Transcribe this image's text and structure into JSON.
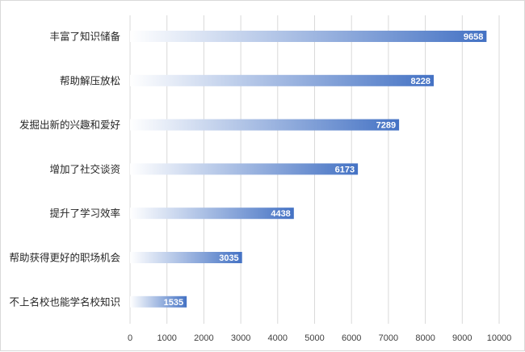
{
  "chart_data": {
    "type": "bar",
    "orientation": "horizontal",
    "categories": [
      "丰富了知识储备",
      "帮助解压放松",
      "发掘出新的兴趣和爱好",
      "增加了社交谈资",
      "提升了学习效率",
      "帮助获得更好的职场机会",
      "不上名校也能学名校知识"
    ],
    "values": [
      9658,
      8228,
      7289,
      6173,
      4438,
      3035,
      1535
    ],
    "xlim": [
      0,
      10000
    ],
    "x_ticks": [
      0,
      1000,
      2000,
      3000,
      4000,
      5000,
      6000,
      7000,
      8000,
      9000,
      10000
    ],
    "x_tick_labels": [
      "0",
      "1000",
      "2000",
      "3000",
      "4000",
      "5000",
      "6000",
      "7000",
      "8000",
      "9000",
      "10000"
    ],
    "data_labels": [
      "9658",
      "8228",
      "7289",
      "6173",
      "4438",
      "3035",
      "1535"
    ],
    "title": "",
    "xlabel": "",
    "ylabel": "",
    "grid": "vertical",
    "legend": "none",
    "colors": {
      "bar_gradient_start": "#ffffff",
      "bar_gradient_end": "#4472c4",
      "gridline": "#d9d9d9",
      "data_label": "#ffffff",
      "text": "#262626"
    }
  }
}
